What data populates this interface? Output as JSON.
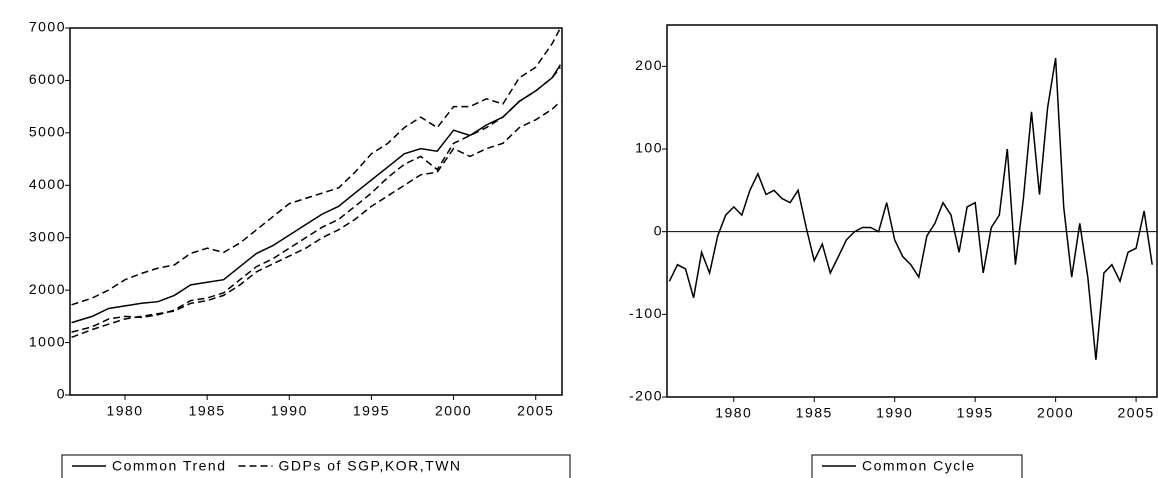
{
  "chart_data": [
    {
      "type": "line",
      "legend": "bottom",
      "x": [
        1976.75,
        1978,
        1979,
        1980,
        1981,
        1982,
        1983,
        1984,
        1985,
        1986,
        1987,
        1988,
        1989,
        1990,
        1991,
        1992,
        1993,
        1994,
        1995,
        1996,
        1997,
        1998,
        1999,
        2000,
        2001,
        2002,
        2003,
        2004,
        2005,
        2006,
        2006.5
      ],
      "series": [
        {
          "name": "Common Trend",
          "color": "#000000",
          "dash": "solid",
          "values": [
            1380,
            1500,
            1650,
            1700,
            1750,
            1780,
            1900,
            2100,
            2150,
            2200,
            2450,
            2700,
            2850,
            3050,
            3250,
            3450,
            3600,
            3850,
            4100,
            4350,
            4600,
            4700,
            4650,
            5050,
            4950,
            5150,
            5300,
            5600,
            5800,
            6050,
            6300
          ]
        },
        {
          "name": "GDPs of SGP,KOR,TWN",
          "color": "#000000",
          "dash": "dashed",
          "values": [
            [
              1720,
              1850,
              2000,
              2200,
              2320,
              2420,
              2480,
              2700,
              2800,
              2720,
              2900,
              3150,
              3400,
              3650,
              3750,
              3850,
              3950,
              4250,
              4600,
              4800,
              5100,
              5300,
              5100,
              5500,
              5500,
              5650,
              5550,
              6050,
              6250,
              6700,
              7000
            ],
            [
              1200,
              1300,
              1450,
              1500,
              1480,
              1530,
              1620,
              1800,
              1850,
              1950,
              2200,
              2450,
              2600,
              2800,
              3000,
              3200,
              3350,
              3600,
              3850,
              4150,
              4400,
              4550,
              4300,
              4800,
              4950,
              5100,
              5300,
              5600,
              5800,
              6050,
              6250
            ],
            [
              1100,
              1250,
              1350,
              1450,
              1500,
              1550,
              1600,
              1750,
              1800,
              1900,
              2100,
              2350,
              2500,
              2650,
              2800,
              3000,
              3150,
              3350,
              3600,
              3800,
              4000,
              4200,
              4250,
              4700,
              4550,
              4700,
              4800,
              5100,
              5250,
              5450,
              5600
            ]
          ]
        }
      ],
      "xlim": [
        1976.65,
        2006.6
      ],
      "xticks": [
        1980,
        1985,
        1990,
        1995,
        2000,
        2005
      ],
      "ylim": [
        0,
        7000
      ],
      "yticks": [
        0,
        1000,
        2000,
        3000,
        4000,
        5000,
        6000,
        7000
      ]
    },
    {
      "type": "line",
      "legend": "bottom",
      "hline": 0,
      "x": [
        1976,
        1976.5,
        1977,
        1977.5,
        1978,
        1978.5,
        1979,
        1979.5,
        1980,
        1980.5,
        1981,
        1981.5,
        1982,
        1982.5,
        1983,
        1983.5,
        1984,
        1984.5,
        1985,
        1985.5,
        1986,
        1986.5,
        1987,
        1987.5,
        1988,
        1988.5,
        1989,
        1989.5,
        1990,
        1990.5,
        1991,
        1991.5,
        1992,
        1992.5,
        1993,
        1993.5,
        1994,
        1994.5,
        1995,
        1995.5,
        1996,
        1996.5,
        1997,
        1997.5,
        1998,
        1998.5,
        1999,
        1999.5,
        2000,
        2000.5,
        2001,
        2001.5,
        2002,
        2002.5,
        2003,
        2003.5,
        2004,
        2004.5,
        2005,
        2005.5,
        2006
      ],
      "series": [
        {
          "name": "Common Cycle",
          "color": "#000000",
          "dash": "solid",
          "values": [
            -60,
            -40,
            -45,
            -80,
            -25,
            -50,
            -5,
            20,
            30,
            20,
            50,
            70,
            45,
            50,
            40,
            35,
            50,
            5,
            -35,
            -15,
            -50,
            -30,
            -10,
            0,
            5,
            5,
            0,
            35,
            -10,
            -30,
            -40,
            -55,
            -5,
            10,
            35,
            20,
            -25,
            30,
            35,
            -50,
            5,
            20,
            100,
            -40,
            40,
            145,
            45,
            150,
            210,
            30,
            -55,
            10,
            -55,
            -155,
            -50,
            -40,
            -60,
            -25,
            -20,
            25,
            -40
          ]
        }
      ],
      "xlim": [
        1975.85,
        2006.3
      ],
      "xticks": [
        1980,
        1985,
        1990,
        1995,
        2000,
        2005
      ],
      "ylim": [
        -200,
        250
      ],
      "yticks": [
        -200,
        -100,
        0,
        100,
        200
      ]
    }
  ]
}
